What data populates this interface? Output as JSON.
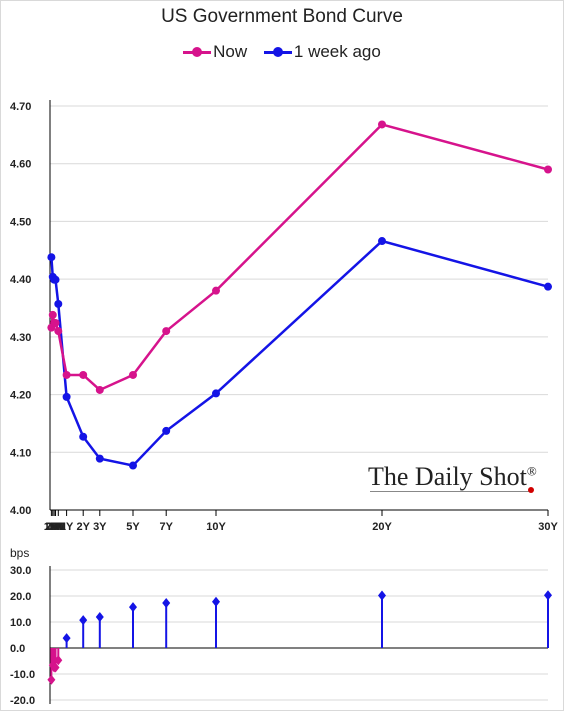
{
  "colors": {
    "now": "#d6138c",
    "week": "#1414e6",
    "axis": "#000000",
    "grid": "#d9d9d9"
  },
  "brand": "The Daily Shot",
  "brand_mark": "®",
  "chart_data": [
    {
      "type": "line",
      "title": "US Government Bond Curve",
      "legend_position": "top-center",
      "x_tick_labels": [
        "1M",
        "2M",
        "3M",
        "4M",
        "6M",
        "1Y",
        "2Y",
        "3Y",
        "5Y",
        "7Y",
        "10Y",
        "20Y",
        "30Y"
      ],
      "x_months": [
        1,
        2,
        3,
        4,
        6,
        12,
        24,
        36,
        60,
        84,
        120,
        240,
        360
      ],
      "ylim": [
        4.0,
        4.7
      ],
      "y_ticks": [
        "4.00",
        "4.10",
        "4.20",
        "4.30",
        "4.40",
        "4.50",
        "4.60",
        "4.70"
      ],
      "grid": true,
      "series": [
        {
          "name": "Now",
          "values": [
            4.316,
            4.338,
            4.324,
            4.324,
            4.31,
            4.234,
            4.234,
            4.208,
            4.234,
            4.31,
            4.38,
            4.668,
            4.59
          ]
        },
        {
          "name": "1 week ago",
          "values": [
            4.438,
            4.404,
            4.399,
            4.399,
            4.357,
            4.196,
            4.127,
            4.089,
            4.077,
            4.137,
            4.202,
            4.466,
            4.387
          ]
        }
      ]
    },
    {
      "type": "bar",
      "ylabel": "bps",
      "ylim": [
        -20,
        30
      ],
      "y_ticks": [
        "30.0",
        "20.0",
        "10.0",
        "0.0",
        "-10.0",
        "-20.0"
      ],
      "grid": true,
      "series": [
        {
          "values": [
            -12.2,
            -6.6,
            -7.5,
            -7.5,
            -4.7,
            3.8,
            10.7,
            11.9,
            15.7,
            17.3,
            17.8,
            20.2,
            20.3
          ]
        }
      ]
    }
  ]
}
